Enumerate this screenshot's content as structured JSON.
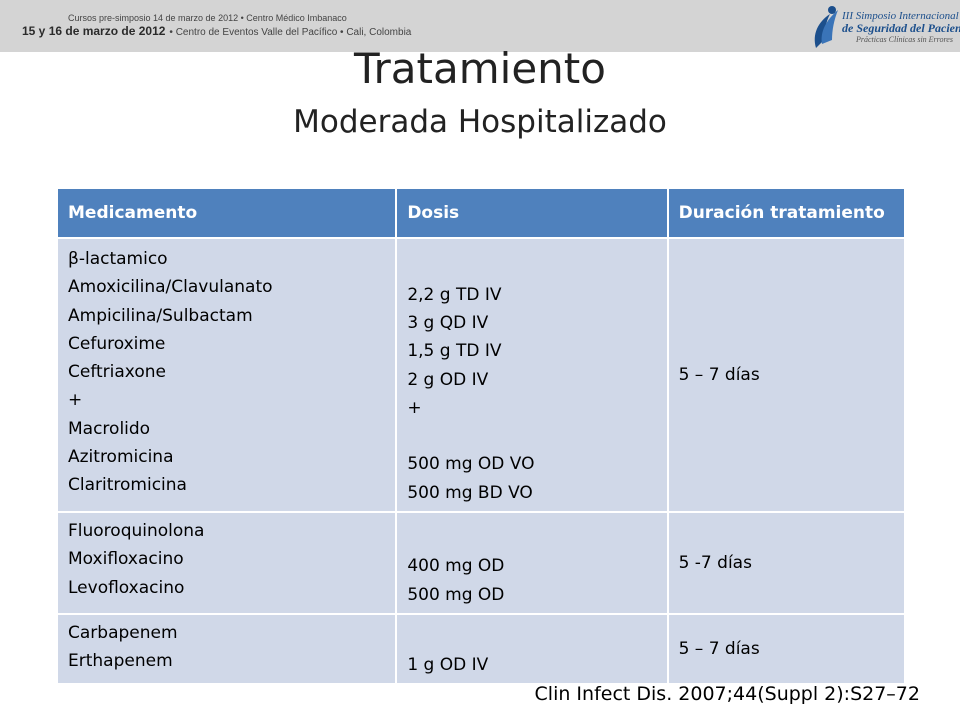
{
  "banner": {
    "line1": "Cursos pre-simposio 14 de marzo de 2012 • Centro Médico Imbanaco",
    "line2_bold": "15 y 16 de marzo de 2012",
    "line2_rest": "• Centro de Eventos Valle del Pacífico • Cali, Colombia"
  },
  "logo": {
    "line1": "III Simposio Internacional",
    "line2": "de Seguridad del Paciente",
    "line3": "Prácticas Clínicas sin Errores"
  },
  "title": "Tratamiento",
  "subtitle": "Moderada Hospitalizado",
  "table": {
    "headers": [
      "Medicamento",
      "Dosis",
      "Duración tratamiento"
    ],
    "rows": [
      {
        "drugs": [
          "β-lactamico",
          "Amoxicilina/Clavulanato",
          "Ampicilina/Sulbactam",
          "Cefuroxime",
          "Ceftriaxone",
          "+",
          "Macrolido",
          "Azitromicina",
          "Claritromicina"
        ],
        "doses": [
          "2,2 g TD IV",
          "3 g QD IV",
          "1,5 g TD IV",
          "2 g OD IV",
          "+",
          "",
          "500 mg OD VO",
          "500 mg BD VO"
        ],
        "duration": "5 – 7 días"
      },
      {
        "drugs": [
          "Fluoroquinolona",
          "Moxifloxacino",
          "Levofloxacino"
        ],
        "doses": [
          "400 mg OD",
          "500 mg OD"
        ],
        "duration": "5 -7 días"
      },
      {
        "drugs": [
          "Carbapenem",
          "Erthapenem"
        ],
        "doses": [
          "1 g OD IV"
        ],
        "duration": "5 – 7 días"
      }
    ]
  },
  "citation": "Clin Infect Dis. 2007;44(Suppl 2):S27–72",
  "colors": {
    "header": "#4f81bd",
    "cell": "#d0d8e8",
    "banner": "#d4d4d4",
    "logo": "#1c4f8c"
  }
}
